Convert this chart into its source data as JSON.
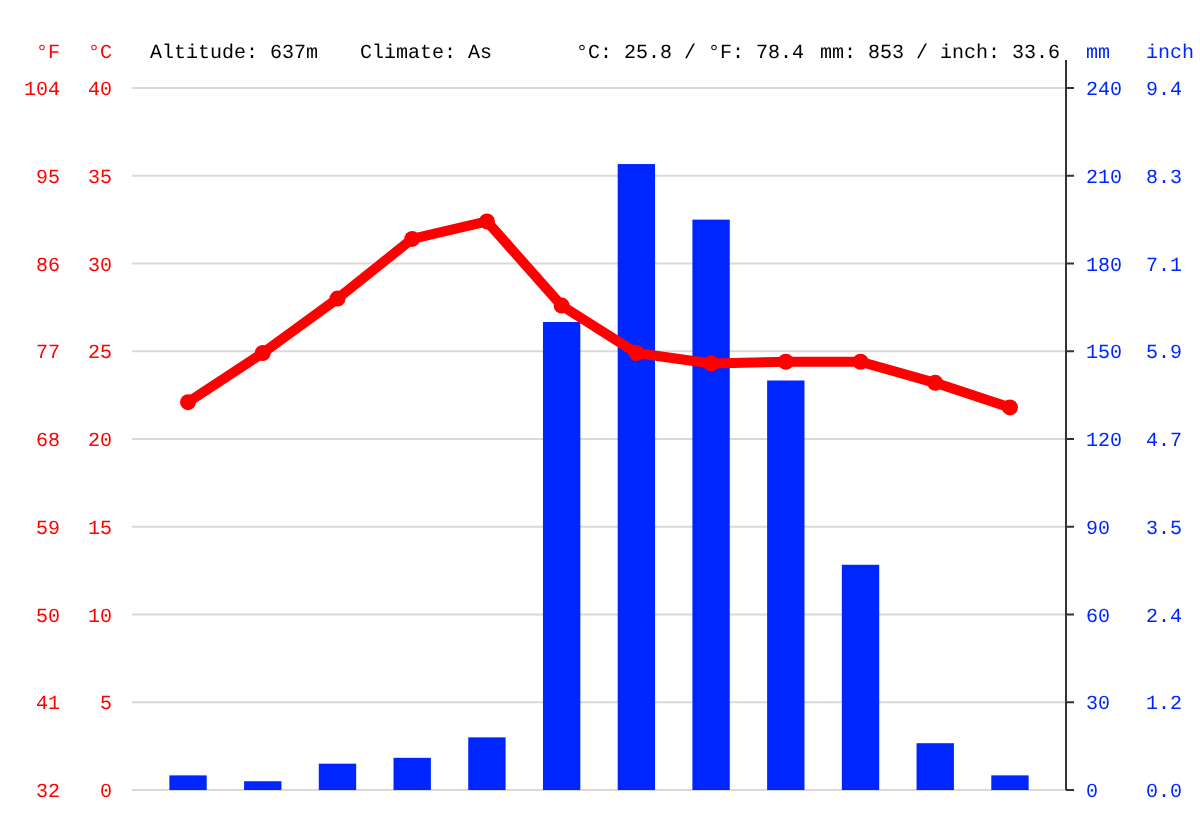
{
  "chart_data": {
    "type": "bar",
    "categories": [
      null,
      null,
      null,
      null,
      null,
      null,
      null,
      null,
      null,
      null,
      null,
      null
    ],
    "series": [
      {
        "color": "#0026ff",
        "axis": "y2",
        "values": [
          5,
          3,
          9,
          11,
          18,
          160,
          214,
          195,
          140,
          77,
          16,
          5
        ]
      },
      {
        "type": "line",
        "color": "#ff0000",
        "axis": "y",
        "values": [
          22.1,
          24.9,
          28.0,
          31.4,
          32.4,
          27.6,
          24.9,
          24.3,
          24.4,
          24.4,
          23.2,
          21.8
        ]
      }
    ],
    "ylabel": "°C",
    "ylim": [
      0,
      40
    ],
    "yticks": [
      0,
      5,
      10,
      15,
      20,
      25,
      30,
      35,
      40
    ],
    "y3label": "°F",
    "y3lim": [
      32,
      104
    ],
    "y3ticks": [
      32,
      41,
      50,
      59,
      68,
      77,
      86,
      95,
      104
    ],
    "y2label": "mm",
    "y2lim": [
      0,
      240
    ],
    "y2ticks": [
      0,
      30,
      60,
      90,
      120,
      150,
      180,
      210,
      240
    ],
    "annotations": [
      "Altitude: 637m",
      "Climate: As",
      "°C: 25.8 / °F: 78.4",
      "mm: 853 / inch: 33.6",
      "inch",
      "0.0",
      "1.2",
      "2.4",
      "3.5",
      "4.7",
      "5.9",
      "7.1",
      "8.3",
      "9.4"
    ],
    "grid": "y",
    "marker": "circle"
  }
}
